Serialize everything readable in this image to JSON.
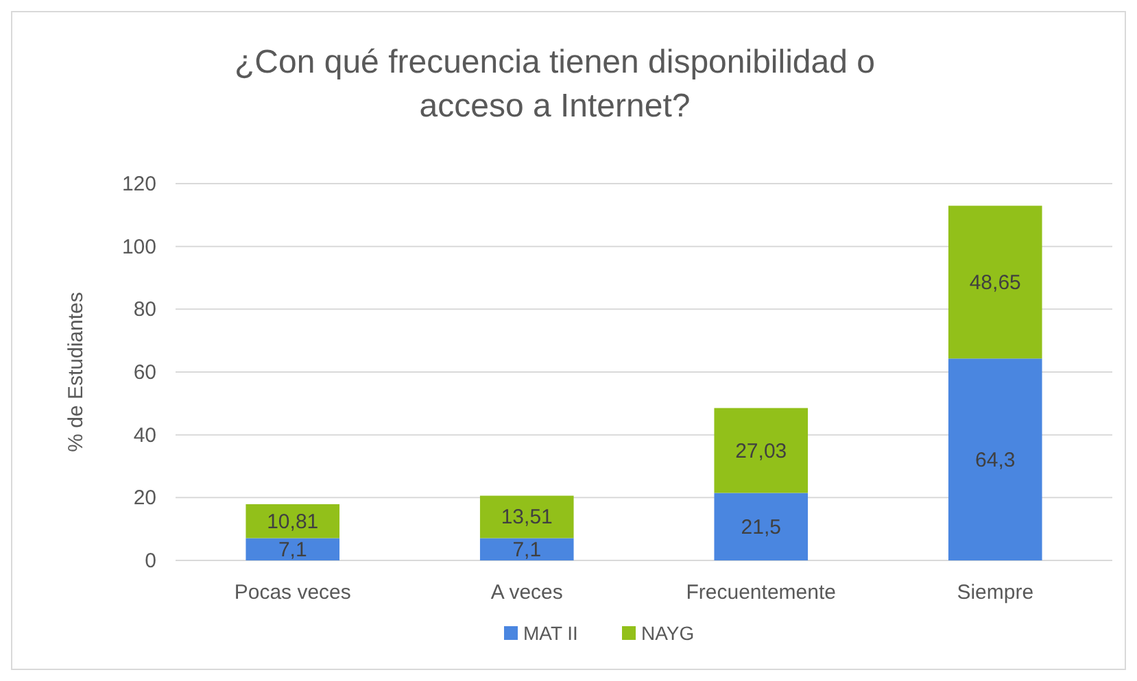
{
  "chart_data": {
    "type": "bar",
    "title": "¿Con qué frecuencia tienen disponibilidad o acceso a Internet?",
    "ylabel": "% de Estudiantes",
    "categories": [
      "Pocas veces",
      "A veces",
      "Frecuentemente",
      "Siempre"
    ],
    "stacked": true,
    "series": [
      {
        "name": "MAT II",
        "color": "#4a86e0",
        "values": [
          7.1,
          7.1,
          21.5,
          64.3
        ],
        "value_labels": [
          "7,1",
          "7,1",
          "21,5",
          "64,3"
        ]
      },
      {
        "name": "NAYG",
        "color": "#92c01a",
        "values": [
          10.81,
          13.51,
          27.03,
          48.65
        ],
        "value_labels": [
          "10,81",
          "13,51",
          "27,03",
          "48,65"
        ]
      }
    ],
    "ylim": [
      0,
      120
    ],
    "yticks": [
      0,
      20,
      40,
      60,
      80,
      100,
      120
    ],
    "grid": "y",
    "legend": "bottom"
  }
}
